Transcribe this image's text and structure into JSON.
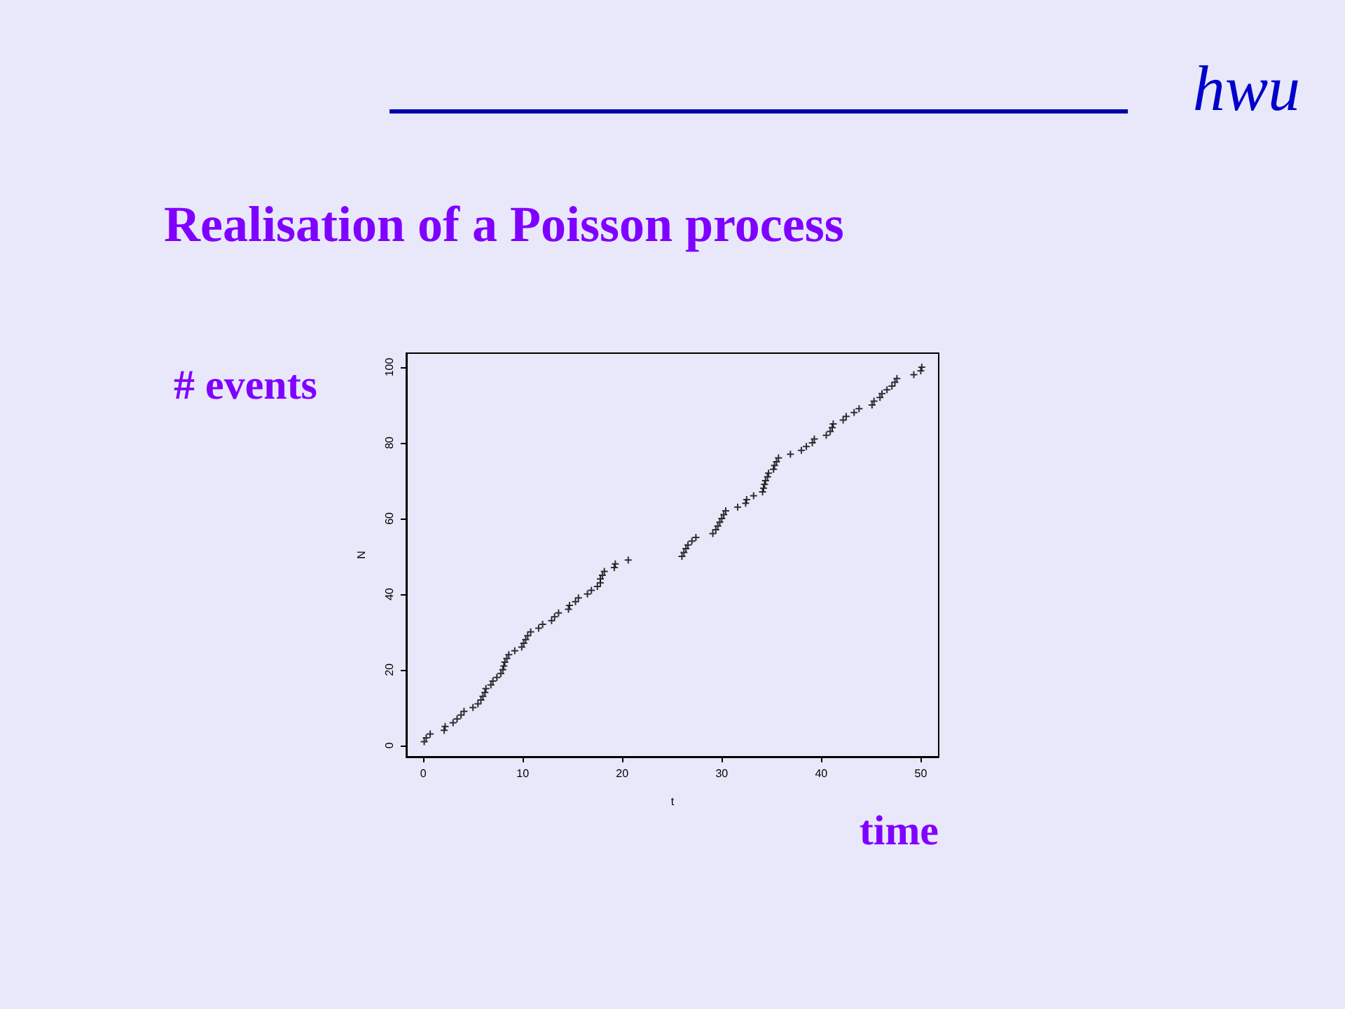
{
  "chart_data": {
    "type": "scatter",
    "title": "Realisation of a Poisson process",
    "xlabel": "t",
    "ylabel": "N",
    "annotations": [
      "hwu",
      "# events",
      "time"
    ],
    "x": [
      0.1,
      0.3,
      0.7,
      2.1,
      2.2,
      3.0,
      3.4,
      3.8,
      4.1,
      5.0,
      5.5,
      5.8,
      6.0,
      6.2,
      6.3,
      6.8,
      7.0,
      7.4,
      7.8,
      8.0,
      8.1,
      8.2,
      8.4,
      8.6,
      9.2,
      9.9,
      10.1,
      10.3,
      10.5,
      10.8,
      11.6,
      12.0,
      12.9,
      13.2,
      13.6,
      14.6,
      14.7,
      15.3,
      15.6,
      16.5,
      16.9,
      17.5,
      17.8,
      17.8,
      18.0,
      18.2,
      19.2,
      19.3,
      20.6,
      26.0,
      26.2,
      26.4,
      26.6,
      27.0,
      27.4,
      29.1,
      29.4,
      29.6,
      29.8,
      30.0,
      30.2,
      30.4,
      31.6,
      32.4,
      32.5,
      33.2,
      34.1,
      34.2,
      34.3,
      34.4,
      34.6,
      34.7,
      35.2,
      35.3,
      35.5,
      35.7,
      36.9,
      38.0,
      38.5,
      39.1,
      39.3,
      40.5,
      40.9,
      41.1,
      41.2,
      42.2,
      42.5,
      43.3,
      43.8,
      45.1,
      45.3,
      45.9,
      46.1,
      46.6,
      47.1,
      47.4,
      47.6,
      49.3,
      50.0,
      50.1
    ],
    "series": [
      {
        "color": "#000000",
        "values": [
          1,
          2,
          3,
          4,
          5,
          6,
          7,
          8,
          9,
          10,
          11,
          12,
          13,
          14,
          15,
          16,
          17,
          18,
          19,
          20,
          21,
          22,
          23,
          24,
          25,
          26,
          27,
          28,
          29,
          30,
          31,
          32,
          33,
          34,
          35,
          36,
          37,
          38,
          39,
          40,
          41,
          42,
          43,
          44,
          45,
          46,
          47,
          48,
          49,
          50,
          51,
          52,
          53,
          54,
          55,
          56,
          57,
          58,
          59,
          60,
          61,
          62,
          63,
          64,
          65,
          66,
          67,
          68,
          69,
          70,
          71,
          72,
          73,
          74,
          75,
          76,
          77,
          78,
          79,
          80,
          81,
          82,
          83,
          84,
          85,
          86,
          87,
          88,
          89,
          90,
          91,
          92,
          93,
          94,
          95,
          96,
          97,
          98,
          99,
          100
        ]
      }
    ],
    "xlim": [
      -1.7,
      51.8
    ],
    "ylim": [
      -3,
      103.7
    ],
    "xticks": [
      0,
      10,
      20,
      30,
      40,
      50
    ],
    "yticks": [
      0,
      20,
      40,
      60,
      80,
      100
    ],
    "grid": false,
    "marker": "cross"
  }
}
